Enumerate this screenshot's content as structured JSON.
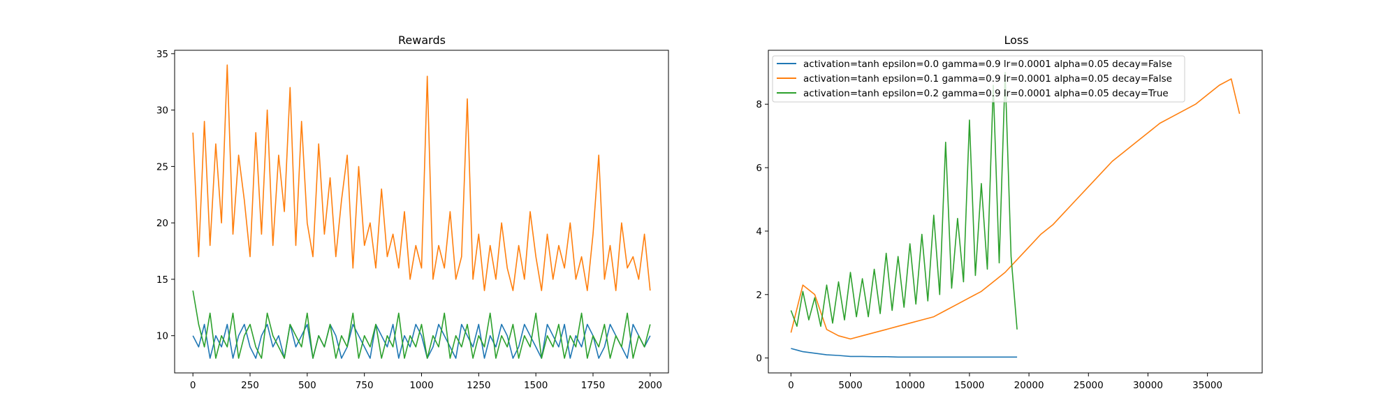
{
  "chart_data": [
    {
      "type": "line",
      "title": "Rewards",
      "xlabel": "",
      "ylabel": "",
      "xlim": [
        -80,
        2080
      ],
      "ylim": [
        6.7,
        35.3
      ],
      "xticks": [
        0,
        250,
        500,
        750,
        1000,
        1250,
        1500,
        1750,
        2000
      ],
      "xtick_labels": [
        "0",
        "250",
        "500",
        "750",
        "1000",
        "1250",
        "1500",
        "1750",
        "2000"
      ],
      "yticks": [
        10,
        15,
        20,
        25,
        30,
        35
      ],
      "ytick_labels": [
        "10",
        "15",
        "20",
        "25",
        "30",
        "35"
      ],
      "grid": false,
      "x": [
        0,
        25,
        50,
        75,
        100,
        125,
        150,
        175,
        200,
        225,
        250,
        275,
        300,
        325,
        350,
        375,
        400,
        425,
        450,
        475,
        500,
        525,
        550,
        575,
        600,
        625,
        650,
        675,
        700,
        725,
        750,
        775,
        800,
        825,
        850,
        875,
        900,
        925,
        950,
        975,
        1000,
        1025,
        1050,
        1075,
        1100,
        1125,
        1150,
        1175,
        1200,
        1225,
        1250,
        1275,
        1300,
        1325,
        1350,
        1375,
        1400,
        1425,
        1450,
        1475,
        1500,
        1525,
        1550,
        1575,
        1600,
        1625,
        1650,
        1675,
        1700,
        1725,
        1750,
        1775,
        1800,
        1825,
        1850,
        1875,
        1900,
        1925,
        1950,
        1975,
        2000
      ],
      "series": [
        {
          "name": "activation=tanh epsilon=0.0 gamma=0.9 lr=0.0001 alpha=0.05 decay=False",
          "color": "#1f77b4",
          "values": [
            10,
            9,
            11,
            8,
            10,
            9,
            11,
            8,
            10,
            11,
            9,
            8,
            10,
            11,
            9,
            10,
            8,
            11,
            9,
            10,
            11,
            8,
            10,
            9,
            11,
            10,
            8,
            9,
            11,
            10,
            9,
            8,
            11,
            10,
            9,
            11,
            8,
            10,
            9,
            11,
            10,
            8,
            9,
            11,
            10,
            9,
            8,
            11,
            10,
            9,
            11,
            8,
            10,
            9,
            11,
            10,
            8,
            9,
            11,
            10,
            9,
            8,
            11,
            10,
            9,
            11,
            8,
            10,
            9,
            11,
            10,
            8,
            9,
            11,
            10,
            9,
            8,
            11,
            10,
            9,
            10
          ]
        },
        {
          "name": "activation=tanh epsilon=0.1 gamma=0.9 lr=0.0001 alpha=0.05 decay=False",
          "color": "#ff7f0e",
          "values": [
            28,
            17,
            29,
            18,
            27,
            20,
            34,
            19,
            26,
            22,
            17,
            28,
            19,
            30,
            18,
            26,
            21,
            32,
            18,
            29,
            20,
            17,
            27,
            19,
            24,
            17,
            22,
            26,
            16,
            25,
            18,
            20,
            16,
            23,
            17,
            19,
            16,
            21,
            15,
            18,
            16,
            33,
            15,
            18,
            16,
            21,
            15,
            17,
            31,
            15,
            19,
            14,
            18,
            15,
            20,
            16,
            14,
            18,
            15,
            21,
            17,
            14,
            19,
            15,
            18,
            16,
            20,
            15,
            17,
            14,
            19,
            26,
            15,
            18,
            14,
            20,
            16,
            17,
            15,
            19,
            14
          ]
        },
        {
          "name": "activation=tanh epsilon=0.2 gamma=0.9 lr=0.0001 alpha=0.05 decay=True",
          "color": "#2ca02c",
          "values": [
            14,
            11,
            9,
            12,
            8,
            10,
            9,
            12,
            8,
            10,
            11,
            9,
            8,
            12,
            10,
            9,
            8,
            11,
            10,
            9,
            12,
            8,
            10,
            9,
            11,
            8,
            10,
            9,
            12,
            8,
            10,
            9,
            11,
            8,
            10,
            9,
            12,
            8,
            10,
            9,
            11,
            8,
            10,
            9,
            12,
            8,
            10,
            9,
            11,
            8,
            10,
            9,
            12,
            8,
            10,
            9,
            11,
            8,
            10,
            9,
            12,
            8,
            10,
            9,
            11,
            8,
            10,
            9,
            12,
            8,
            10,
            9,
            11,
            8,
            10,
            9,
            12,
            8,
            10,
            9,
            11
          ]
        }
      ]
    },
    {
      "type": "line",
      "title": "Loss",
      "xlabel": "",
      "ylabel": "",
      "xlim": [
        -1900,
        39600
      ],
      "ylim": [
        -0.47,
        9.7
      ],
      "xticks": [
        0,
        5000,
        10000,
        15000,
        20000,
        25000,
        30000,
        35000
      ],
      "xtick_labels": [
        "0",
        "5000",
        "10000",
        "15000",
        "20000",
        "25000",
        "30000",
        "35000"
      ],
      "yticks": [
        0,
        2,
        4,
        6,
        8
      ],
      "ytick_labels": [
        "0",
        "2",
        "4",
        "6",
        "8"
      ],
      "grid": false,
      "legend": {
        "location": "upper-left",
        "entries": [
          "activation=tanh epsilon=0.0 gamma=0.9 lr=0.0001 alpha=0.05 decay=False",
          "activation=tanh epsilon=0.1 gamma=0.9 lr=0.0001 alpha=0.05 decay=False",
          "activation=tanh epsilon=0.2 gamma=0.9 lr=0.0001 alpha=0.05 decay=True"
        ]
      },
      "series": [
        {
          "name": "activation=tanh epsilon=0.0 gamma=0.9 lr=0.0001 alpha=0.05 decay=False",
          "color": "#1f77b4",
          "x": [
            0,
            1000,
            2000,
            3000,
            4000,
            5000,
            6000,
            7000,
            8000,
            9000,
            10000,
            12000,
            14000,
            16000,
            18000,
            19000
          ],
          "values": [
            0.3,
            0.2,
            0.15,
            0.1,
            0.08,
            0.05,
            0.05,
            0.04,
            0.04,
            0.03,
            0.03,
            0.03,
            0.03,
            0.03,
            0.03,
            0.03
          ]
        },
        {
          "name": "activation=tanh epsilon=0.1 gamma=0.9 lr=0.0001 alpha=0.05 decay=False",
          "color": "#ff7f0e",
          "x": [
            0,
            1000,
            2000,
            3000,
            4000,
            5000,
            6000,
            7000,
            8000,
            9000,
            10000,
            11000,
            12000,
            13000,
            14000,
            15000,
            16000,
            17000,
            18000,
            19000,
            20000,
            21000,
            22000,
            23000,
            24000,
            25000,
            26000,
            27000,
            28000,
            29000,
            30000,
            31000,
            32000,
            33000,
            34000,
            35000,
            36000,
            37000,
            37700
          ],
          "values": [
            0.8,
            2.3,
            2.0,
            0.9,
            0.7,
            0.6,
            0.7,
            0.8,
            0.9,
            1.0,
            1.1,
            1.2,
            1.3,
            1.5,
            1.7,
            1.9,
            2.1,
            2.4,
            2.7,
            3.1,
            3.5,
            3.9,
            4.2,
            4.6,
            5.0,
            5.4,
            5.8,
            6.2,
            6.5,
            6.8,
            7.1,
            7.4,
            7.6,
            7.8,
            8.0,
            8.3,
            8.6,
            8.8,
            7.7
          ]
        },
        {
          "name": "activation=tanh epsilon=0.2 gamma=0.9 lr=0.0001 alpha=0.05 decay=True",
          "color": "#2ca02c",
          "x": [
            0,
            500,
            1000,
            1500,
            2000,
            2500,
            3000,
            3500,
            4000,
            4500,
            5000,
            5500,
            6000,
            6500,
            7000,
            7500,
            8000,
            8500,
            9000,
            9500,
            10000,
            10500,
            11000,
            11500,
            12000,
            12500,
            13000,
            13500,
            14000,
            14500,
            15000,
            15500,
            16000,
            16500,
            17000,
            17500,
            18000,
            18500,
            19000
          ],
          "values": [
            1.5,
            1.0,
            2.1,
            1.2,
            1.9,
            1.0,
            2.3,
            1.1,
            2.4,
            1.2,
            2.7,
            1.3,
            2.5,
            1.3,
            2.8,
            1.4,
            3.3,
            1.5,
            3.2,
            1.6,
            3.6,
            1.7,
            3.9,
            1.8,
            4.5,
            2.0,
            6.8,
            2.2,
            4.4,
            2.4,
            7.5,
            2.6,
            5.5,
            2.8,
            8.6,
            3.0,
            9.0,
            3.2,
            0.9
          ]
        }
      ]
    }
  ]
}
